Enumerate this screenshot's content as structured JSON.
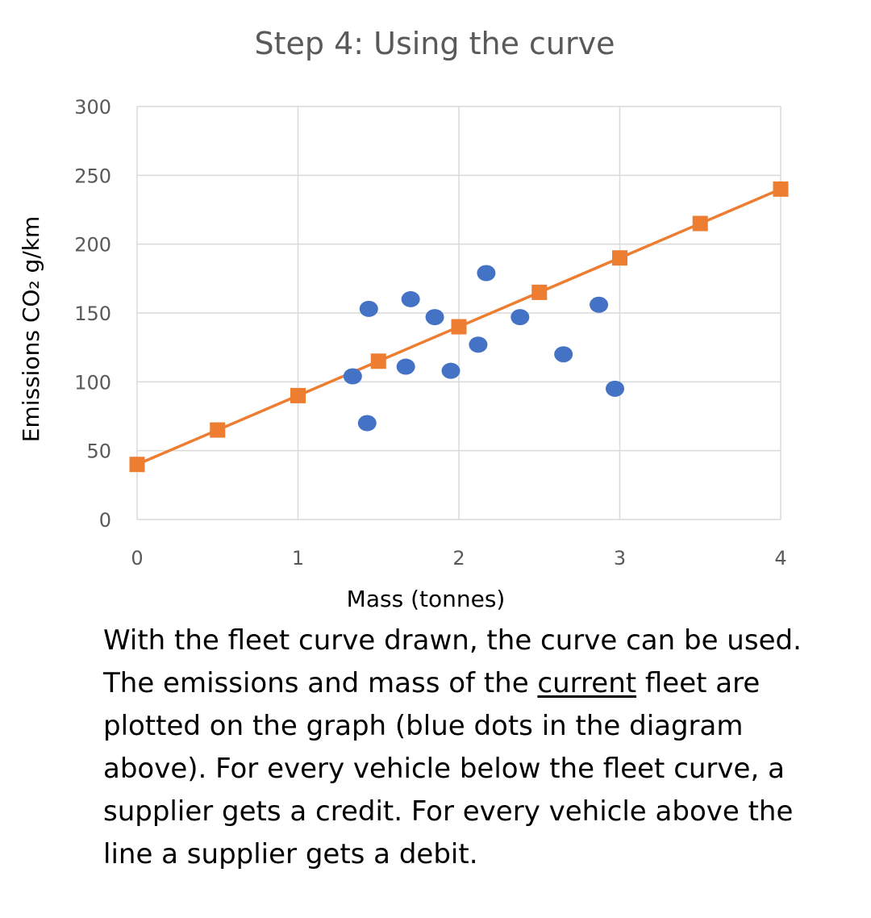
{
  "caption": {
    "part1": "With the fleet curve drawn, the curve can be used. The emissions and mass of the ",
    "underlined": "current",
    "part2": " fleet are plotted on the graph (blue dots in the diagram above). For every vehicle below the fleet curve, a supplier gets a credit. For every vehicle above the line a supplier gets a debit."
  },
  "colors": {
    "fleet_curve": "#ED7D31",
    "current_fleet": "#4472C4",
    "gridline": "#D9D9D9",
    "tick_text": "#595959"
  },
  "chart_data": {
    "type": "scatter",
    "title": "Step 4: Using the curve",
    "xlabel": "Mass (tonnes)",
    "ylabel": "Emissions CO₂ g/km",
    "xlim": [
      0,
      4
    ],
    "ylim": [
      0,
      300
    ],
    "x_ticks": [
      "0",
      "1",
      "2",
      "3",
      "4"
    ],
    "y_ticks": [
      "0",
      "50",
      "100",
      "150",
      "200",
      "250",
      "300"
    ],
    "grid": true,
    "legend": "none",
    "series": [
      {
        "kind": "line-with-square-markers",
        "x": [
          0,
          0.5,
          1,
          1.5,
          2,
          2.5,
          3,
          3.5,
          4
        ],
        "y": [
          40,
          65,
          90,
          115,
          140,
          165,
          190,
          215,
          240
        ]
      },
      {
        "kind": "scatter-dots",
        "x": [
          1.34,
          1.43,
          1.44,
          1.67,
          1.7,
          1.85,
          1.95,
          2.12,
          2.17,
          2.38,
          2.65,
          2.87,
          2.97
        ],
        "y": [
          104,
          70,
          153,
          111,
          160,
          147,
          108,
          127,
          179,
          147,
          120,
          156,
          95
        ]
      }
    ]
  }
}
